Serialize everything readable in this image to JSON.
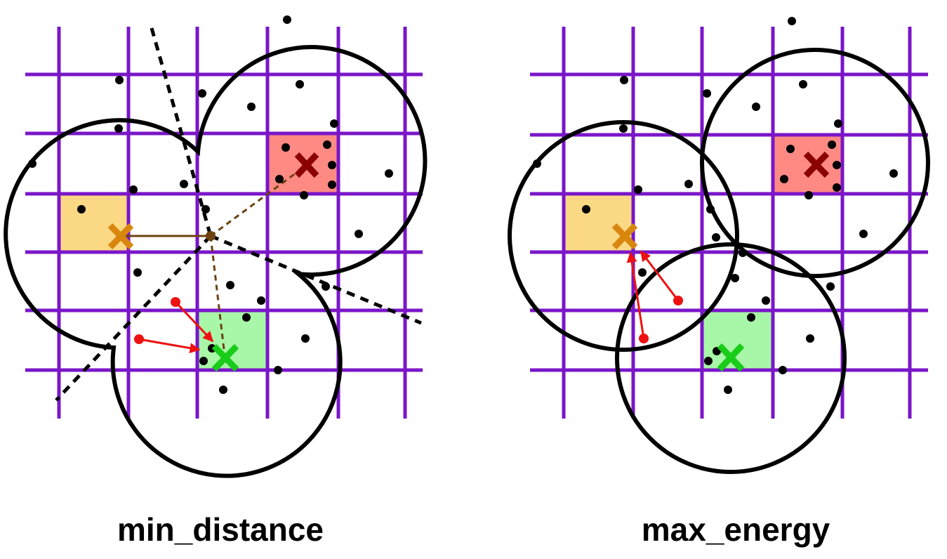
{
  "panels": [
    {
      "id": "min_distance",
      "label": "min_distance"
    },
    {
      "id": "max_energy",
      "label": "max_energy"
    }
  ],
  "colors": {
    "grid": "#7a16c8",
    "circle": "#000000",
    "point": "#000000",
    "cell_red": "#ff8a84",
    "cell_yellow": "#fbd984",
    "cell_green": "#a8f7a8",
    "x_red": "#8b0000",
    "x_orange": "#d8860e",
    "x_green": "#19cc19",
    "arrow": "#ee1111",
    "link": "#6b4210",
    "boundary": "#000000"
  },
  "icons": {
    "center_marker": "x-cross-icon",
    "sample_point": "dot-icon",
    "candidate_point": "red-dot-icon"
  }
}
